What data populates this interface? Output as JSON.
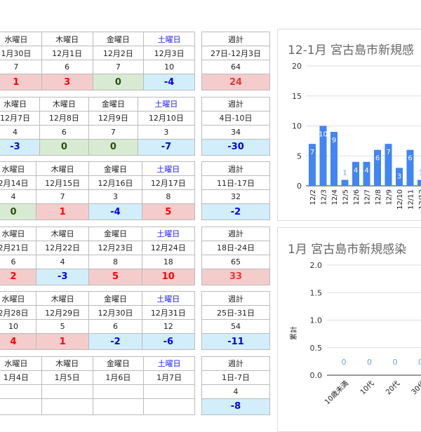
{
  "weekdays": [
    "水曜日",
    "木曜日",
    "金曜日",
    "土曜日"
  ],
  "total_label": "週計",
  "weeks": [
    {
      "dates": [
        "1月30日",
        "12月1日",
        "12月2日",
        "12月3日"
      ],
      "counts": [
        "7",
        "6",
        "7",
        "10"
      ],
      "diffs": [
        "1",
        "3",
        "0",
        "-4"
      ],
      "range": "27日-12月3日",
      "total": "64",
      "total_diff": "24"
    },
    {
      "dates": [
        "12月7日",
        "12月8日",
        "12月9日",
        "12月10日"
      ],
      "counts": [
        "4",
        "6",
        "7",
        "3"
      ],
      "diffs": [
        "-3",
        "0",
        "0",
        "-7"
      ],
      "range": "4日-10日",
      "total": "34",
      "total_diff": "-30"
    },
    {
      "dates": [
        "2月14日",
        "12月15日",
        "12月16日",
        "12月17日"
      ],
      "counts": [
        "4",
        "7",
        "3",
        "8"
      ],
      "diffs": [
        "0",
        "1",
        "-4",
        "5"
      ],
      "range": "11日-17日",
      "total": "32",
      "total_diff": "-2"
    },
    {
      "dates": [
        "2月21日",
        "12月22日",
        "12月23日",
        "12月24日"
      ],
      "counts": [
        "6",
        "4",
        "8",
        "18"
      ],
      "diffs": [
        "2",
        "-3",
        "5",
        "10"
      ],
      "range": "18日-24日",
      "total": "65",
      "total_diff": "33"
    },
    {
      "dates": [
        "2月28日",
        "12月29日",
        "12月30日",
        "12月31日"
      ],
      "counts": [
        "10",
        "5",
        "6",
        "12"
      ],
      "diffs": [
        "4",
        "1",
        "-2",
        "-6"
      ],
      "range": "25日-31日",
      "total": "54",
      "total_diff": "-11"
    },
    {
      "dates": [
        "1月4日",
        "1月5日",
        "1月6日",
        "1月7日"
      ],
      "counts": [
        "",
        "",
        "",
        ""
      ],
      "diffs": [
        "",
        "",
        "",
        ""
      ],
      "range": "1日-7日",
      "total": "4",
      "total_diff": "-8"
    }
  ],
  "colors": {
    "bar": "#4285f4",
    "pos": "#ff0000",
    "zero": "#274e13",
    "neg": "#0000ee"
  },
  "chart_data": [
    {
      "type": "bar",
      "title": "12-1月 宮古島市新規感",
      "categories": [
        "12/2",
        "12/3",
        "12/4",
        "12/5",
        "12/6",
        "12/7",
        "12/8",
        "12/9",
        "12/10",
        "12/11",
        "12/12"
      ],
      "values": [
        7,
        10,
        9,
        1,
        4,
        4,
        6,
        7,
        3,
        6,
        1
      ],
      "yticks": [
        "0",
        "5",
        "10",
        "15",
        "20"
      ],
      "ylim": [
        0,
        20
      ]
    },
    {
      "type": "bar",
      "title": "1月 宮古島市新規感染",
      "ylabel": "累計",
      "categories": [
        "10歳未満",
        "10代",
        "20代",
        "30代"
      ],
      "values": [
        0,
        0,
        0,
        0
      ],
      "value_labels": [
        "0",
        "0",
        "0",
        "0"
      ],
      "yticks": [
        "0.0",
        "0.5",
        "1.0",
        "1.5",
        "2.0"
      ],
      "ylim": [
        0,
        2
      ]
    }
  ]
}
